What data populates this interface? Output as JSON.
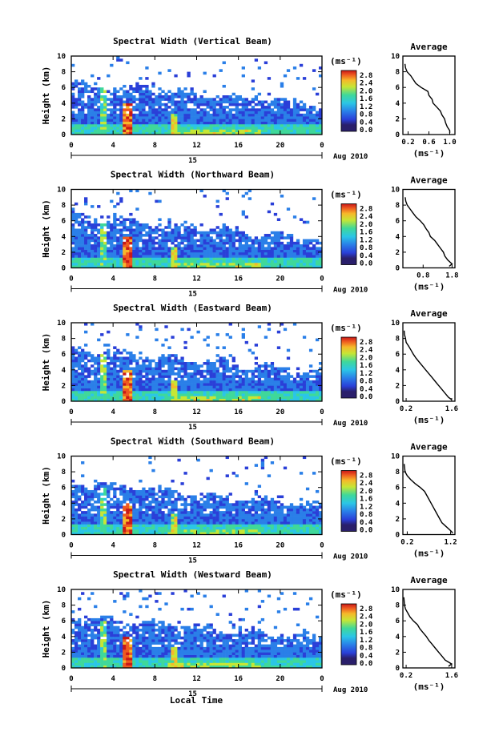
{
  "figure": {
    "date_label": "Aug 2010",
    "date_day": "15",
    "xlabel": "Local Time"
  },
  "chart_data": [
    {
      "type": "heatmap",
      "title": "Spectral Width (Vertical Beam)",
      "ylabel": "Height (km)",
      "xticks": [
        "0",
        "4",
        "8",
        "12",
        "16",
        "20",
        "0"
      ],
      "yticks": [
        "0",
        "2",
        "4",
        "6",
        "8",
        "10"
      ],
      "xlim": [
        0,
        24
      ],
      "ylim": [
        0,
        10
      ],
      "colorbar": {
        "unit": "(ms⁻¹)",
        "ticks": [
          "0.0",
          "0.4",
          "0.8",
          "1.2",
          "1.6",
          "2.0",
          "2.4",
          "2.8"
        ],
        "range": [
          0,
          2.8
        ]
      },
      "profile": {
        "title": "Average",
        "xlabel": "(ms⁻¹)",
        "xticks": [
          "0.2",
          "0.6",
          "1.0"
        ],
        "xlim": [
          0.1,
          1.1
        ],
        "yticks": [
          "0",
          "2",
          "4",
          "6",
          "8",
          "10"
        ],
        "heights": [
          0.2,
          0.5,
          1,
          1.5,
          2,
          2.5,
          3,
          3.5,
          4,
          4.5,
          5,
          5.5,
          6,
          6.5,
          7,
          7.5,
          8,
          8.5,
          9
        ],
        "values": [
          1.0,
          1.0,
          0.95,
          0.92,
          0.9,
          0.85,
          0.82,
          0.75,
          0.68,
          0.66,
          0.6,
          0.58,
          0.45,
          0.35,
          0.3,
          0.25,
          0.18,
          0.15,
          0.14
        ]
      }
    },
    {
      "type": "heatmap",
      "title": "Spectral Width (Northward Beam)",
      "ylabel": "Height (km)",
      "xticks": [
        "0",
        "4",
        "8",
        "12",
        "16",
        "20",
        "0"
      ],
      "yticks": [
        "0",
        "2",
        "4",
        "6",
        "8",
        "10"
      ],
      "xlim": [
        0,
        24
      ],
      "ylim": [
        0,
        10
      ],
      "colorbar": {
        "unit": "(ms⁻¹)",
        "ticks": [
          "0.0",
          "0.4",
          "0.8",
          "1.2",
          "1.6",
          "2.0",
          "2.4",
          "2.8"
        ],
        "range": [
          0,
          2.8
        ]
      },
      "profile": {
        "title": "Average",
        "xlabel": "(ms⁻¹)",
        "xticks": [
          "0.8",
          "1.8"
        ],
        "xlim": [
          0.1,
          1.9
        ],
        "yticks": [
          "0",
          "2",
          "4",
          "6",
          "8",
          "10"
        ],
        "heights": [
          0.2,
          0.5,
          1,
          1.5,
          2,
          2.5,
          3,
          3.5,
          4,
          4.5,
          5,
          5.5,
          6,
          6.5,
          7,
          7.5,
          8,
          8.5,
          9
        ],
        "values": [
          1.7,
          1.8,
          1.65,
          1.55,
          1.5,
          1.4,
          1.3,
          1.2,
          1.05,
          1.0,
          0.9,
          0.82,
          0.7,
          0.55,
          0.45,
          0.35,
          0.25,
          0.2,
          0.18
        ]
      }
    },
    {
      "type": "heatmap",
      "title": "Spectral Width (Eastward Beam)",
      "ylabel": "Height (km)",
      "xticks": [
        "0",
        "4",
        "8",
        "12",
        "16",
        "20",
        "0"
      ],
      "yticks": [
        "0",
        "2",
        "4",
        "6",
        "8",
        "10"
      ],
      "xlim": [
        0,
        24
      ],
      "ylim": [
        0,
        10
      ],
      "colorbar": {
        "unit": "(ms⁻¹)",
        "ticks": [
          "0.0",
          "0.4",
          "0.8",
          "1.2",
          "1.6",
          "2.0",
          "2.4",
          "2.8"
        ],
        "range": [
          0,
          2.8
        ]
      },
      "profile": {
        "title": "Average",
        "xlabel": "(ms⁻¹)",
        "xticks": [
          "0.2",
          "1.6"
        ],
        "xlim": [
          0.1,
          1.7
        ],
        "yticks": [
          "0",
          "2",
          "4",
          "6",
          "8",
          "10"
        ],
        "heights": [
          0.2,
          0.5,
          1,
          1.5,
          2,
          2.5,
          3,
          3.5,
          4,
          4.5,
          5,
          5.5,
          6,
          6.5,
          7,
          7.5,
          8,
          8.5,
          9
        ],
        "values": [
          1.6,
          1.5,
          1.4,
          1.3,
          1.2,
          1.1,
          1.0,
          0.9,
          0.8,
          0.7,
          0.6,
          0.5,
          0.42,
          0.35,
          0.28,
          0.2,
          0.18,
          0.15,
          0.14
        ]
      }
    },
    {
      "type": "heatmap",
      "title": "Spectral Width (Southward Beam)",
      "ylabel": "Height (km)",
      "xticks": [
        "0",
        "4",
        "8",
        "12",
        "16",
        "20",
        "0"
      ],
      "yticks": [
        "0",
        "2",
        "4",
        "6",
        "8",
        "10"
      ],
      "xlim": [
        0,
        24
      ],
      "ylim": [
        0,
        10
      ],
      "colorbar": {
        "unit": "(ms⁻¹)",
        "ticks": [
          "0.0",
          "0.4",
          "0.8",
          "1.2",
          "1.6",
          "2.0",
          "2.4",
          "2.8"
        ],
        "range": [
          0,
          2.8
        ]
      },
      "profile": {
        "title": "Average",
        "xlabel": "(ms⁻¹)",
        "xticks": [
          "0.2",
          "1.2"
        ],
        "xlim": [
          0.1,
          1.3
        ],
        "yticks": [
          "0",
          "2",
          "4",
          "6",
          "8",
          "10"
        ],
        "heights": [
          0.2,
          0.5,
          1,
          1.5,
          2,
          2.5,
          3,
          3.5,
          4,
          4.5,
          5,
          5.5,
          6,
          6.5,
          7,
          7.5,
          8,
          8.5,
          9
        ],
        "values": [
          1.25,
          1.2,
          1.1,
          1.0,
          0.95,
          0.9,
          0.85,
          0.8,
          0.75,
          0.7,
          0.65,
          0.6,
          0.5,
          0.38,
          0.28,
          0.2,
          0.15,
          0.14,
          0.13
        ]
      }
    },
    {
      "type": "heatmap",
      "title": "Spectral Width (Westward Beam)",
      "ylabel": "Height (km)",
      "xticks": [
        "0",
        "4",
        "8",
        "12",
        "16",
        "20",
        "0"
      ],
      "yticks": [
        "0",
        "2",
        "4",
        "6",
        "8",
        "10"
      ],
      "xlim": [
        0,
        24
      ],
      "ylim": [
        0,
        10
      ],
      "colorbar": {
        "unit": "(ms⁻¹)",
        "ticks": [
          "0.0",
          "0.4",
          "0.8",
          "1.2",
          "1.6",
          "2.0",
          "2.4",
          "2.8"
        ],
        "range": [
          0,
          2.8
        ]
      },
      "profile": {
        "title": "Average",
        "xlabel": "(ms⁻¹)",
        "xticks": [
          "0.2",
          "1.6"
        ],
        "xlim": [
          0.1,
          1.7
        ],
        "yticks": [
          "0",
          "2",
          "4",
          "6",
          "8",
          "10"
        ],
        "heights": [
          0.2,
          0.5,
          1,
          1.5,
          2,
          2.5,
          3,
          3.5,
          4,
          4.5,
          5,
          5.5,
          6,
          6.5,
          7,
          7.5,
          8,
          8.5,
          9
        ],
        "values": [
          1.5,
          1.6,
          1.4,
          1.3,
          1.2,
          1.1,
          1.0,
          0.9,
          0.82,
          0.72,
          0.62,
          0.55,
          0.42,
          0.32,
          0.25,
          0.18,
          0.15,
          0.14,
          0.13
        ]
      }
    }
  ]
}
